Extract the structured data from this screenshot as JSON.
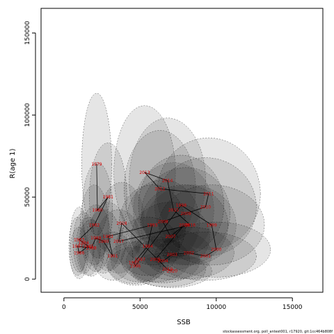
{
  "chart_data": {
    "type": "scatter",
    "xlabel": "SSB",
    "ylabel": "R(age 1)",
    "xlim": [
      -1500,
      17000
    ],
    "ylim": [
      -8000,
      165000
    ],
    "xticks": [
      0,
      5000,
      10000,
      15000
    ],
    "yticks": [
      0,
      50000,
      100000,
      150000
    ],
    "grid": false,
    "footer": "stockassessment.org, poll_antest001, r17920, git:1cc464b808f",
    "colors": {
      "points": "#e00000",
      "path": "#000000",
      "ellipse_fill": "#000000",
      "ellipse_stroke": "#555555"
    },
    "points": [
      {
        "year": "1979",
        "x": 2150,
        "y": 70000
      },
      {
        "year": "1980",
        "x": 2200,
        "y": 42000
      },
      {
        "year": "1981",
        "x": 2900,
        "y": 50000
      },
      {
        "year": "1982",
        "x": 2000,
        "y": 33000
      },
      {
        "year": "1983",
        "x": 1000,
        "y": 24000
      },
      {
        "year": "1984",
        "x": 1300,
        "y": 22000
      },
      {
        "year": "1985",
        "x": 1600,
        "y": 20000
      },
      {
        "year": "1986",
        "x": 1000,
        "y": 16000
      },
      {
        "year": "1987",
        "x": 900,
        "y": 20000
      },
      {
        "year": "1988",
        "x": 1800,
        "y": 19000
      },
      {
        "year": "1989",
        "x": 2100,
        "y": 25000
      },
      {
        "year": "1990",
        "x": 2600,
        "y": 23000
      },
      {
        "year": "1991",
        "x": 3200,
        "y": 14000
      },
      {
        "year": "1992",
        "x": 2900,
        "y": 26000
      },
      {
        "year": "1993",
        "x": 5800,
        "y": 33000
      },
      {
        "year": "1994",
        "x": 5500,
        "y": 20000
      },
      {
        "year": "1995",
        "x": 4600,
        "y": 10000
      },
      {
        "year": "1996",
        "x": 4700,
        "y": 8000
      },
      {
        "year": "1997",
        "x": 5000,
        "y": 12000
      },
      {
        "year": "1998",
        "x": 7700,
        "y": 45000
      },
      {
        "year": "1999",
        "x": 9700,
        "y": 33000
      },
      {
        "year": "2000",
        "x": 10000,
        "y": 18000
      },
      {
        "year": "2001",
        "x": 9300,
        "y": 14000
      },
      {
        "year": "2002",
        "x": 8200,
        "y": 16000
      },
      {
        "year": "2003",
        "x": 7100,
        "y": 15000
      },
      {
        "year": "2004",
        "x": 6500,
        "y": 11000
      },
      {
        "year": "2005",
        "x": 6000,
        "y": 12000
      },
      {
        "year": "2006",
        "x": 7900,
        "y": 33000
      },
      {
        "year": "2007",
        "x": 7000,
        "y": 26000
      },
      {
        "year": "2008",
        "x": 6500,
        "y": 35000
      },
      {
        "year": "2009",
        "x": 8000,
        "y": 40000
      },
      {
        "year": "2010",
        "x": 9300,
        "y": 44000
      },
      {
        "year": "2011",
        "x": 9500,
        "y": 52000
      },
      {
        "year": "2012",
        "x": 6300,
        "y": 55000
      },
      {
        "year": "2013",
        "x": 5300,
        "y": 65000
      },
      {
        "year": "2014",
        "x": 6800,
        "y": 60000
      },
      {
        "year": "2015",
        "x": 7200,
        "y": 42000
      },
      {
        "year": "2016",
        "x": 8300,
        "y": 33000
      },
      {
        "year": "2017",
        "x": 3600,
        "y": 23000
      },
      {
        "year": "2018",
        "x": 3800,
        "y": 34000
      },
      {
        "year": "2019",
        "x": 6800,
        "y": 6000
      },
      {
        "year": "2020",
        "x": 7100,
        "y": 5000
      }
    ]
  }
}
